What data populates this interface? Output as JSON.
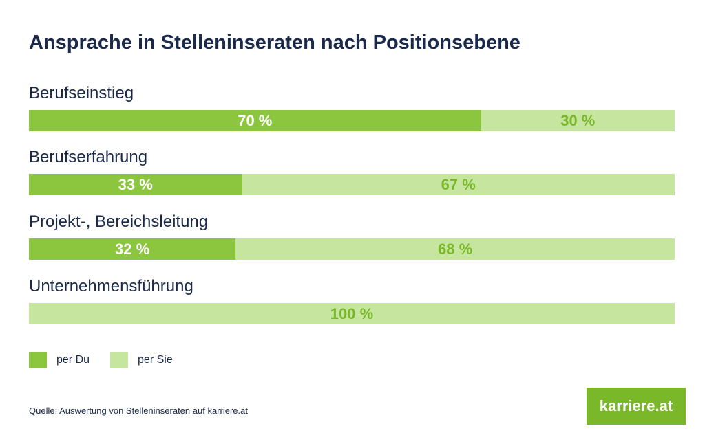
{
  "colors": {
    "du": "#8cc63f",
    "sie": "#c6e6a0",
    "text": "#1b2a4a",
    "brand": "#7ab82a"
  },
  "chart_data": {
    "type": "bar",
    "orientation": "horizontal",
    "stacked": true,
    "title": "Ansprache in Stelleninseraten nach Positionsebene",
    "categories": [
      "Berufseinstieg",
      "Berufserfahrung",
      "Projekt-, Bereichsleitung",
      "Unternehmensführung"
    ],
    "series": [
      {
        "name": "per Du",
        "values": [
          70,
          33,
          32,
          0
        ],
        "labels": [
          "70 %",
          "33 %",
          "32 %",
          ""
        ]
      },
      {
        "name": "per Sie",
        "values": [
          30,
          67,
          68,
          100
        ],
        "labels": [
          "30 %",
          "67 %",
          "68 %",
          "100 %"
        ]
      }
    ],
    "xlim": [
      0,
      100
    ],
    "legend_position": "bottom-left",
    "grid": false
  },
  "source": "Quelle: Auswertung von Stelleninseraten auf karriere.at",
  "logo": "karriere.at"
}
